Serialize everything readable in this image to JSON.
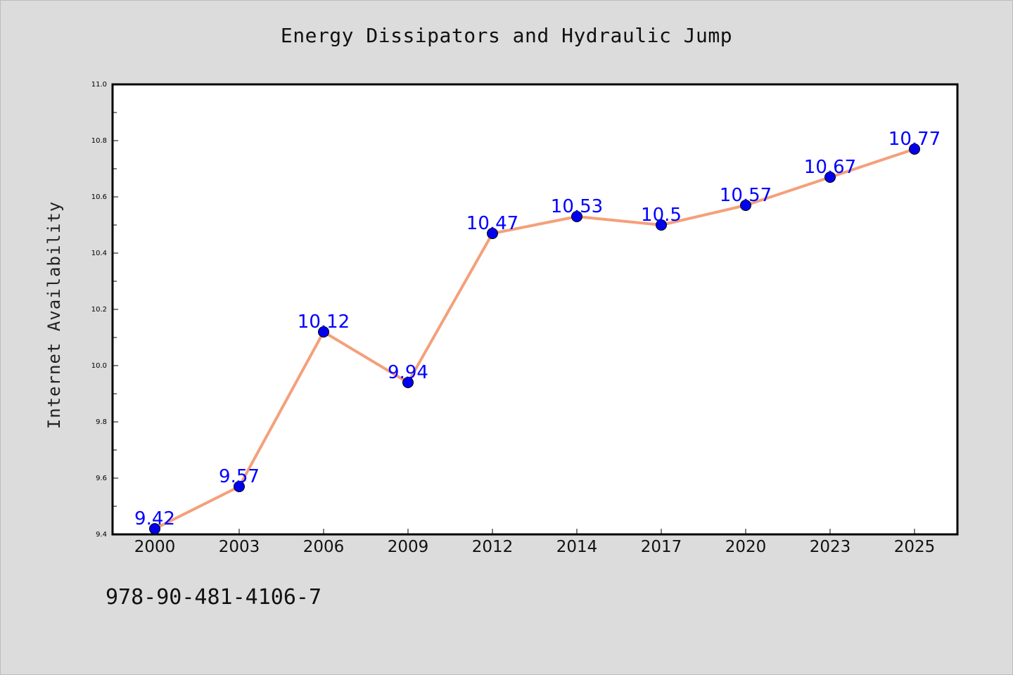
{
  "chart_data": {
    "type": "line",
    "title": "Energy Dissipators and Hydraulic Jump",
    "xlabel": "",
    "ylabel": "Internet Availability",
    "categories": [
      "2000",
      "2003",
      "2006",
      "2009",
      "2012",
      "2014",
      "2017",
      "2020",
      "2023",
      "2025"
    ],
    "series": [
      {
        "values": [
          9.42,
          9.57,
          10.12,
          9.94,
          10.47,
          10.53,
          10.5,
          10.57,
          10.67,
          10.77
        ],
        "labels": [
          "9.42",
          "9.57",
          "10.12",
          "9.94",
          "10.47",
          "10.53",
          "10.5",
          "10.57",
          "10.67",
          "10.77"
        ],
        "line_color": "#f4a07a",
        "marker_color": "#0000ee"
      }
    ],
    "ylim": [
      9.4,
      11.0
    ],
    "yticks": [
      "9.4",
      "9.6",
      "9.8",
      "10.0",
      "10.2",
      "10.4",
      "10.6",
      "10.8",
      "11.0"
    ],
    "grid": false,
    "label_color": "#0000ff"
  },
  "footer": {
    "isbn": "978-90-481-4106-7"
  }
}
